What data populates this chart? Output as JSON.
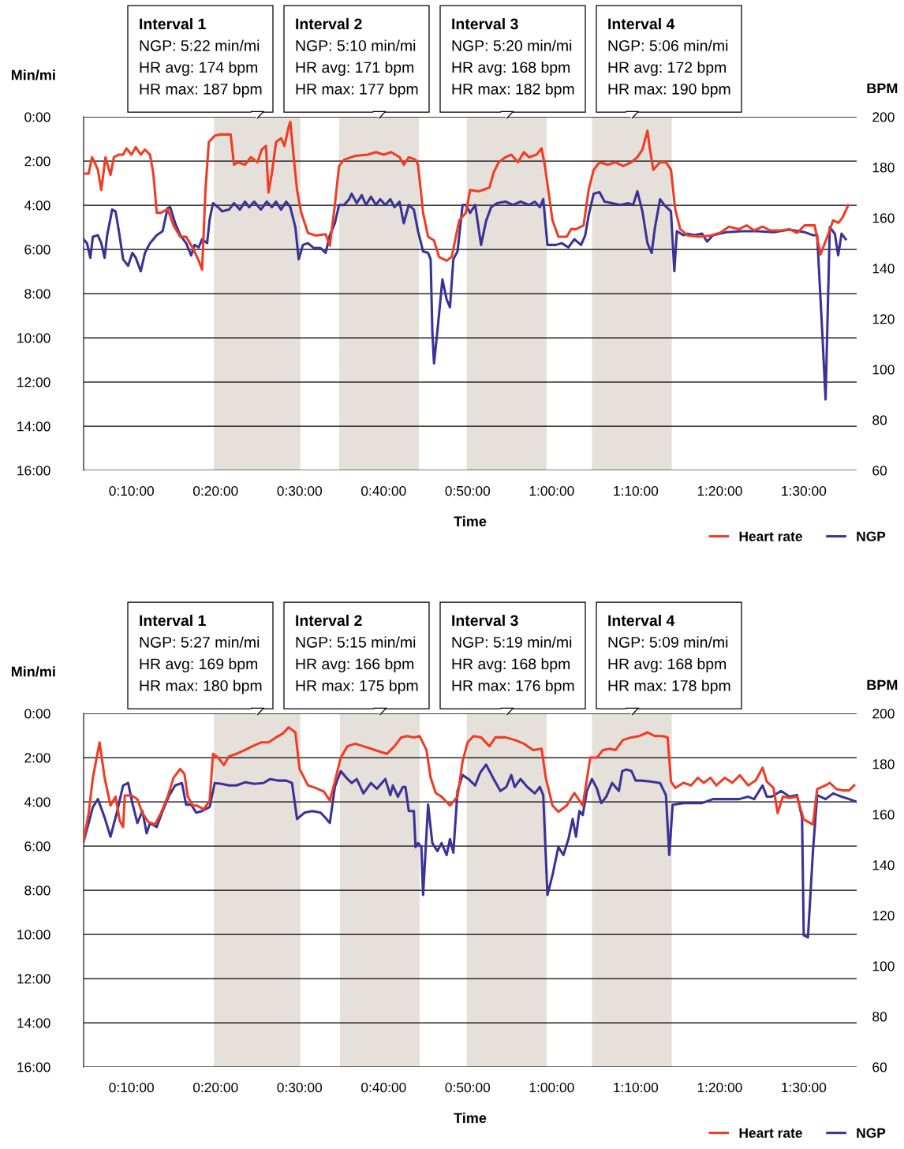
{
  "chart_data": [
    {
      "type": "line",
      "xlabel": "Time",
      "ylabel": "Min/mi",
      "y2label": "BPM",
      "xlim": [
        4.3,
        96.3
      ],
      "xticks": [
        {
          "value": 10,
          "label": "0:10:00"
        },
        {
          "value": 20,
          "label": "0:20:00"
        },
        {
          "value": 30,
          "label": "0:30:00"
        },
        {
          "value": 40,
          "label": "0:40:00"
        },
        {
          "value": 50,
          "label": "0:50:00"
        },
        {
          "value": 60,
          "label": "1:00:00"
        },
        {
          "value": 70,
          "label": "1:10:00"
        },
        {
          "value": 80,
          "label": "1:20:00"
        },
        {
          "value": 90,
          "label": "1:30:00"
        }
      ],
      "ylim": [
        16,
        0
      ],
      "yticks": [
        {
          "value": 0,
          "label": "0:00"
        },
        {
          "value": 2,
          "label": "2:00"
        },
        {
          "value": 4,
          "label": "4:00"
        },
        {
          "value": 6,
          "label": "6:00"
        },
        {
          "value": 8,
          "label": "8:00"
        },
        {
          "value": 10,
          "label": "10:00"
        },
        {
          "value": 12,
          "label": "12:00"
        },
        {
          "value": 14,
          "label": "14:00"
        },
        {
          "value": 16,
          "label": "16:00"
        }
      ],
      "y2lim": [
        60,
        200
      ],
      "y2ticks": [
        60,
        80,
        100,
        120,
        140,
        160,
        180,
        200
      ],
      "grid": "y",
      "legend": "bottom right",
      "bands": [
        {
          "axis": "x",
          "from": 19.8,
          "to": 30.1,
          "color": "#e6e0da"
        },
        {
          "axis": "x",
          "from": 34.7,
          "to": 44.2,
          "color": "#e6e0da"
        },
        {
          "axis": "x",
          "from": 49.9,
          "to": 59.4,
          "color": "#e6e0da"
        },
        {
          "axis": "x",
          "from": 64.8,
          "to": 74.3,
          "color": "#e6e0da"
        }
      ],
      "annotations": [
        "Interval 1\nNGP: 5:22 min/mi\nHR avg: 174 bpm\nHR max: 187 bpm",
        "Interval 2\nNGP: 5:10 min/mi\nHR avg: 171 bpm\nHR max: 177 bpm",
        "Interval 3\nNGP: 5:20 min/mi\nHR avg: 168 bpm\nHR max: 182 bpm",
        "Interval 4\nNGP: 5:06 min/mi\nHR avg: 172 bpm\nHR max: 190 bpm"
      ],
      "series": [
        {
          "name": "Heart rate",
          "color": "#f03c24",
          "axis": "y2",
          "x": [
            4.3,
            4.9,
            5.3,
            5.6,
            6.0,
            6.4,
            6.9,
            7.5,
            7.9,
            8.5,
            9.0,
            9.4,
            10.0,
            10.5,
            11.1,
            11.6,
            12.2,
            12.6,
            13.0,
            13.5,
            14.3,
            15.0,
            15.8,
            16.5,
            17.3,
            18.0,
            18.4,
            18.8,
            19.2,
            19.9,
            20.5,
            21.1,
            21.8,
            22.2,
            22.7,
            23.5,
            24.2,
            25.0,
            25.5,
            26.0,
            26.3,
            26.7,
            27.2,
            27.8,
            28.2,
            28.7,
            28.9,
            29.3,
            29.7,
            30.2,
            31.0,
            31.9,
            33.1,
            33.6,
            34.2,
            34.7,
            35.3,
            36.6,
            38.1,
            39.1,
            40.0,
            40.9,
            41.9,
            42.4,
            43.0,
            43.8,
            44.1,
            44.7,
            45.3,
            46.0,
            46.6,
            47.5,
            48.1,
            48.6,
            49.0,
            49.8,
            50.3,
            51.3,
            51.8,
            52.6,
            53.1,
            53.7,
            54.5,
            55.2,
            56.0,
            56.7,
            57.3,
            58.2,
            58.8,
            59.2,
            60.1,
            60.8,
            61.8,
            62.3,
            62.9,
            63.8,
            64.4,
            65.0,
            65.7,
            66.7,
            67.6,
            68.5,
            69.5,
            70.2,
            70.8,
            71.4,
            71.7,
            72.1,
            72.9,
            73.6,
            74.2,
            74.7,
            75.3,
            76.2,
            77.6,
            78.9,
            80.0,
            81.1,
            82.3,
            83.2,
            84.1,
            85.1,
            86.0,
            87.3,
            88.3,
            89.2,
            90.1,
            91.3,
            92.0,
            92.8,
            93.5,
            94.1,
            94.6,
            95.3
          ],
          "values": [
            177.5,
            177.5,
            184,
            182,
            179,
            171,
            184,
            177,
            184,
            185,
            185,
            187.5,
            185,
            188,
            185,
            187,
            185,
            177.5,
            162,
            162,
            163.5,
            157,
            152.5,
            152.5,
            148,
            143,
            139.5,
            171,
            190,
            192.5,
            193,
            193,
            193,
            181,
            182,
            181,
            184,
            182,
            187,
            188.5,
            170,
            177.5,
            190,
            191.5,
            188.5,
            196,
            198,
            184,
            171,
            162,
            154,
            153,
            153.5,
            149,
            165,
            180.5,
            183,
            184.5,
            185,
            186,
            185,
            186,
            184,
            181,
            184,
            183,
            181,
            162,
            152.5,
            151,
            144.5,
            143,
            144.5,
            152.5,
            159,
            162,
            171,
            170.5,
            171,
            172,
            178,
            182,
            184,
            185,
            182,
            186,
            184,
            185,
            187.5,
            180.5,
            159,
            152.5,
            152.5,
            155.5,
            155.5,
            157,
            171,
            179,
            182,
            181,
            182,
            180.5,
            182,
            184,
            187,
            194.5,
            187,
            179,
            182,
            182,
            179,
            163.5,
            155.5,
            153,
            152.5,
            153,
            154,
            156.5,
            155.5,
            157,
            155,
            156.5,
            155,
            155,
            155.5,
            154,
            157,
            157,
            145.5,
            152.5,
            159,
            158,
            160,
            165
          ]
        },
        {
          "name": "NGP",
          "color": "#3a3296",
          "x": [
            4.3,
            4.7,
            5.1,
            5.4,
            6.0,
            6.4,
            6.8,
            7.1,
            7.7,
            8.1,
            8.5,
            9.0,
            9.6,
            10.1,
            10.5,
            11.1,
            11.6,
            12.2,
            13.0,
            13.7,
            14.3,
            14.6,
            15.2,
            15.8,
            16.5,
            17.1,
            17.5,
            18.0,
            18.4,
            19.0,
            19.3,
            19.7,
            20.3,
            20.8,
            21.6,
            22.2,
            22.9,
            23.5,
            24.0,
            24.6,
            25.4,
            26.1,
            26.7,
            27.2,
            27.8,
            28.4,
            28.9,
            29.5,
            29.9,
            30.4,
            31.0,
            31.7,
            32.5,
            33.1,
            33.6,
            34.2,
            34.7,
            35.3,
            35.9,
            36.2,
            36.8,
            37.4,
            37.9,
            38.5,
            39.1,
            39.6,
            40.2,
            40.8,
            41.3,
            41.9,
            42.4,
            43.0,
            43.6,
            44.1,
            44.7,
            45.3,
            45.6,
            45.8,
            46.0,
            46.4,
            47.0,
            47.5,
            47.9,
            48.3,
            48.8,
            49.4,
            49.8,
            50.3,
            50.9,
            51.6,
            52.2,
            52.8,
            53.5,
            54.5,
            55.4,
            56.3,
            57.3,
            58.0,
            58.6,
            59.0,
            59.5,
            60.5,
            61.2,
            62.0,
            62.7,
            63.5,
            64.0,
            64.4,
            65.0,
            65.7,
            66.3,
            67.2,
            68.2,
            69.1,
            69.7,
            70.2,
            70.8,
            71.4,
            71.9,
            72.3,
            72.9,
            73.4,
            74.2,
            74.6,
            74.9,
            75.7,
            76.2,
            77.0,
            77.9,
            78.5,
            79.2,
            80.8,
            82.6,
            84.5,
            86.4,
            88.3,
            90.1,
            91.1,
            91.6,
            92.2,
            92.6,
            93.1,
            93.7,
            94.1,
            94.5,
            95.0
          ],
          "values": [
            5.54,
            5.72,
            6.38,
            5.43,
            5.36,
            5.72,
            6.38,
            5.36,
            4.2,
            4.28,
            5.18,
            6.45,
            6.74,
            6.16,
            6.38,
            6.99,
            6.16,
            5.72,
            5.36,
            5.18,
            4.13,
            4.09,
            4.82,
            5.36,
            5.72,
            6.27,
            5.8,
            5.91,
            5.54,
            5.72,
            4.64,
            3.91,
            4.09,
            4.28,
            4.2,
            3.91,
            4.2,
            3.84,
            4.09,
            3.84,
            4.2,
            3.84,
            4.09,
            3.84,
            4.2,
            3.84,
            4.09,
            5.0,
            6.45,
            5.8,
            5.72,
            5.94,
            5.94,
            6.16,
            5.36,
            4.82,
            3.99,
            3.99,
            3.73,
            3.48,
            3.91,
            3.55,
            3.99,
            3.62,
            3.99,
            3.73,
            3.99,
            3.73,
            4.09,
            3.84,
            4.82,
            3.99,
            4.2,
            5.18,
            6.09,
            6.16,
            6.45,
            9.71,
            11.16,
            9.71,
            7.36,
            8.26,
            8.62,
            6.45,
            6.09,
            3.99,
            3.99,
            4.35,
            3.99,
            5.8,
            4.71,
            4.09,
            3.91,
            3.84,
            3.99,
            3.84,
            3.99,
            3.84,
            4.09,
            3.73,
            5.8,
            5.8,
            5.72,
            5.91,
            5.54,
            5.8,
            5.36,
            4.46,
            3.48,
            3.41,
            3.84,
            3.91,
            3.99,
            3.91,
            3.99,
            3.37,
            4.28,
            5.72,
            6.16,
            5.0,
            3.73,
            3.99,
            4.28,
            6.99,
            5.18,
            5.36,
            5.29,
            5.36,
            5.29,
            5.65,
            5.36,
            5.22,
            5.18,
            5.18,
            5.22,
            5.11,
            5.22,
            5.36,
            5.36,
            9.71,
            12.79,
            5.0,
            5.29,
            6.27,
            5.29,
            5.54
          ]
        }
      ]
    },
    {
      "type": "line",
      "xlabel": "Time",
      "ylabel": "Min/mi",
      "y2label": "BPM",
      "xlim": [
        4.3,
        96.3
      ],
      "xticks": [
        {
          "value": 10,
          "label": "0:10:00"
        },
        {
          "value": 20,
          "label": "0:20:00"
        },
        {
          "value": 30,
          "label": "0:30:00"
        },
        {
          "value": 40,
          "label": "0:40:00"
        },
        {
          "value": 50,
          "label": "0:50:00"
        },
        {
          "value": 60,
          "label": "1:00:00"
        },
        {
          "value": 70,
          "label": "1:10:00"
        },
        {
          "value": 80,
          "label": "1:20:00"
        },
        {
          "value": 90,
          "label": "1:30:00"
        }
      ],
      "ylim": [
        16,
        0
      ],
      "yticks": [
        {
          "value": 0,
          "label": "0:00"
        },
        {
          "value": 2,
          "label": "2:00"
        },
        {
          "value": 4,
          "label": "4:00"
        },
        {
          "value": 6,
          "label": "6:00"
        },
        {
          "value": 8,
          "label": "8:00"
        },
        {
          "value": 10,
          "label": "10:00"
        },
        {
          "value": 12,
          "label": "12:00"
        },
        {
          "value": 14,
          "label": "14:00"
        },
        {
          "value": 16,
          "label": "16:00"
        }
      ],
      "y2lim": [
        60,
        200
      ],
      "y2ticks": [
        60,
        80,
        100,
        120,
        140,
        160,
        180,
        200
      ],
      "grid": "y",
      "legend": "bottom right",
      "bands": [
        {
          "axis": "x",
          "from": 19.8,
          "to": 30.1,
          "color": "#e6e0da"
        },
        {
          "axis": "x",
          "from": 34.8,
          "to": 44.3,
          "color": "#e6e0da"
        },
        {
          "axis": "x",
          "from": 49.9,
          "to": 59.4,
          "color": "#e6e0da"
        },
        {
          "axis": "x",
          "from": 64.8,
          "to": 74.3,
          "color": "#e6e0da"
        }
      ],
      "annotations": [
        "Interval 1\nNGP: 5:27 min/mi\nHR avg: 169 bpm\nHR max: 180 bpm",
        "Interval 2\nNGP: 5:15 min/mi\nHR avg: 166 bpm\nHR max: 175 bpm",
        "Interval 3\nNGP: 5:19 min/mi\nHR avg: 168 bpm\nHR max: 176 bpm",
        "Interval 4\nNGP: 5:09 min/mi\nHR avg: 168 bpm\nHR max: 178 bpm"
      ],
      "series": [
        {
          "name": "Heart rate",
          "color": "#f03c24",
          "axis": "y2",
          "x": [
            4.3,
            4.9,
            5.4,
            6.2,
            6.8,
            7.5,
            8.1,
            8.6,
            9.0,
            9.2,
            10.0,
            10.7,
            11.3,
            12.0,
            12.8,
            13.5,
            14.3,
            15.0,
            15.8,
            16.3,
            16.7,
            17.3,
            17.8,
            18.6,
            19.3,
            19.7,
            20.3,
            21.0,
            21.6,
            22.5,
            23.5,
            24.4,
            25.4,
            26.3,
            27.2,
            28.0,
            28.7,
            29.5,
            30.0,
            31.0,
            31.9,
            32.9,
            33.6,
            34.2,
            34.9,
            35.7,
            36.6,
            37.6,
            38.5,
            39.4,
            40.4,
            41.3,
            42.1,
            42.8,
            43.6,
            44.3,
            45.1,
            45.6,
            46.2,
            46.9,
            47.9,
            48.8,
            49.4,
            50.0,
            50.7,
            51.6,
            52.6,
            53.3,
            54.5,
            55.6,
            56.7,
            57.8,
            58.8,
            59.3,
            60.1,
            60.8,
            61.8,
            62.7,
            63.7,
            64.6,
            65.4,
            66.1,
            66.9,
            67.6,
            68.5,
            69.5,
            70.4,
            71.4,
            72.3,
            73.2,
            73.8,
            74.2,
            74.7,
            75.7,
            76.6,
            77.4,
            78.1,
            78.9,
            79.6,
            80.6,
            81.5,
            82.4,
            83.4,
            84.3,
            85.1,
            85.6,
            86.4,
            86.9,
            87.5,
            88.3,
            89.2,
            90.0,
            91.1,
            91.6,
            92.6,
            93.1,
            93.9,
            94.6,
            95.4,
            96.0
          ],
          "values": [
            149.5,
            160.5,
            174.5,
            188.5,
            174.5,
            163.5,
            167,
            157.5,
            155,
            167.5,
            167.5,
            166,
            160.5,
            157,
            156,
            160.5,
            167,
            174.5,
            178,
            176,
            167,
            163.5,
            163.5,
            162,
            165.5,
            184,
            182.5,
            179.5,
            183,
            184,
            185.5,
            187,
            188.5,
            188.5,
            190.5,
            192,
            194.5,
            192.5,
            178,
            171.5,
            170.5,
            169,
            165.5,
            173,
            182.5,
            187,
            188,
            187,
            186,
            185,
            184,
            187,
            190.5,
            191,
            190.5,
            191,
            185.5,
            174.5,
            168.5,
            167,
            163.5,
            167,
            181,
            188.5,
            191,
            190.5,
            187,
            190.5,
            190.5,
            189.5,
            188,
            185.5,
            186,
            174.5,
            163.5,
            161,
            163.5,
            168.5,
            163.5,
            182.5,
            182.5,
            185.5,
            186,
            185.5,
            189.5,
            190.5,
            191,
            192.5,
            191,
            191,
            190.5,
            173,
            170.5,
            172.5,
            171.5,
            174.5,
            172.5,
            174.5,
            171.5,
            174.5,
            172.5,
            175.5,
            171.5,
            173.5,
            178.5,
            173,
            170.5,
            160.5,
            167,
            166.5,
            167,
            158,
            156,
            170,
            171.5,
            172.5,
            170,
            169.5,
            169.5,
            171.5
          ]
        },
        {
          "name": "NGP",
          "color": "#3a3296",
          "x": [
            4.3,
            4.9,
            5.4,
            6.0,
            6.8,
            7.5,
            8.3,
            9.0,
            9.6,
            10.1,
            10.7,
            11.3,
            11.8,
            12.2,
            13.0,
            13.7,
            14.5,
            15.2,
            16.0,
            16.5,
            17.1,
            17.7,
            18.4,
            19.3,
            19.9,
            20.7,
            21.6,
            22.5,
            23.5,
            24.6,
            25.7,
            26.5,
            27.4,
            28.4,
            29.1,
            29.7,
            30.6,
            31.5,
            32.5,
            33.2,
            33.6,
            34.2,
            34.9,
            35.7,
            36.2,
            36.8,
            37.6,
            38.5,
            39.2,
            40.2,
            40.8,
            41.1,
            41.7,
            42.3,
            42.6,
            43.0,
            43.6,
            43.8,
            44.1,
            44.5,
            44.7,
            45.3,
            45.8,
            46.4,
            46.9,
            47.5,
            47.9,
            48.3,
            48.8,
            49.4,
            50.1,
            50.9,
            51.5,
            52.2,
            53.1,
            53.9,
            54.6,
            55.2,
            55.6,
            56.3,
            57.1,
            58.0,
            58.6,
            59.0,
            59.5,
            60.1,
            60.8,
            61.4,
            62.0,
            62.5,
            62.9,
            63.3,
            63.7,
            64.2,
            64.8,
            65.4,
            65.9,
            66.5,
            67.2,
            68.0,
            68.4,
            68.9,
            69.5,
            70.0,
            70.6,
            71.7,
            72.9,
            73.6,
            74.0,
            74.4,
            75.7,
            77.0,
            77.9,
            79.2,
            80.8,
            82.3,
            83.4,
            84.1,
            85.1,
            85.6,
            86.2,
            87.3,
            88.3,
            89.2,
            89.8,
            90.0,
            90.5,
            91.1,
            91.6,
            92.6,
            93.5,
            94.5,
            95.4,
            96.2
          ],
          "values": [
            5.8,
            4.96,
            4.24,
            3.88,
            4.71,
            5.58,
            4.42,
            3.26,
            3.15,
            4.06,
            4.96,
            4.42,
            5.43,
            4.96,
            5.14,
            4.42,
            3.7,
            3.26,
            3.15,
            4.13,
            4.13,
            4.49,
            4.42,
            4.24,
            3.15,
            3.19,
            3.26,
            3.26,
            3.12,
            3.19,
            3.15,
            2.97,
            3.04,
            3.04,
            3.15,
            4.78,
            4.49,
            4.42,
            4.49,
            4.78,
            4.96,
            3.33,
            2.61,
            2.97,
            3.15,
            2.97,
            3.62,
            3.15,
            3.41,
            2.97,
            3.7,
            3.26,
            3.77,
            3.33,
            3.33,
            4.42,
            4.42,
            6.05,
            5.87,
            6.05,
            8.22,
            4.13,
            5.87,
            6.23,
            5.87,
            6.41,
            5.69,
            6.3,
            3.51,
            2.79,
            2.97,
            3.26,
            2.68,
            2.32,
            2.97,
            3.51,
            3.33,
            2.79,
            3.33,
            2.97,
            3.33,
            3.62,
            3.33,
            3.7,
            8.22,
            7.32,
            6.05,
            6.41,
            5.69,
            4.78,
            5.58,
            4.42,
            4.6,
            3.51,
            2.97,
            3.41,
            4.06,
            3.77,
            3.15,
            3.51,
            2.61,
            2.54,
            2.61,
            3.04,
            3.04,
            3.08,
            3.15,
            3.7,
            6.41,
            4.13,
            4.06,
            4.06,
            4.06,
            3.88,
            3.88,
            3.88,
            3.77,
            3.88,
            3.26,
            3.77,
            3.77,
            3.51,
            3.77,
            3.7,
            4.71,
            10.04,
            10.14,
            6.23,
            3.7,
            3.88,
            3.62,
            3.77,
            3.88,
            3.99
          ]
        }
      ]
    }
  ]
}
